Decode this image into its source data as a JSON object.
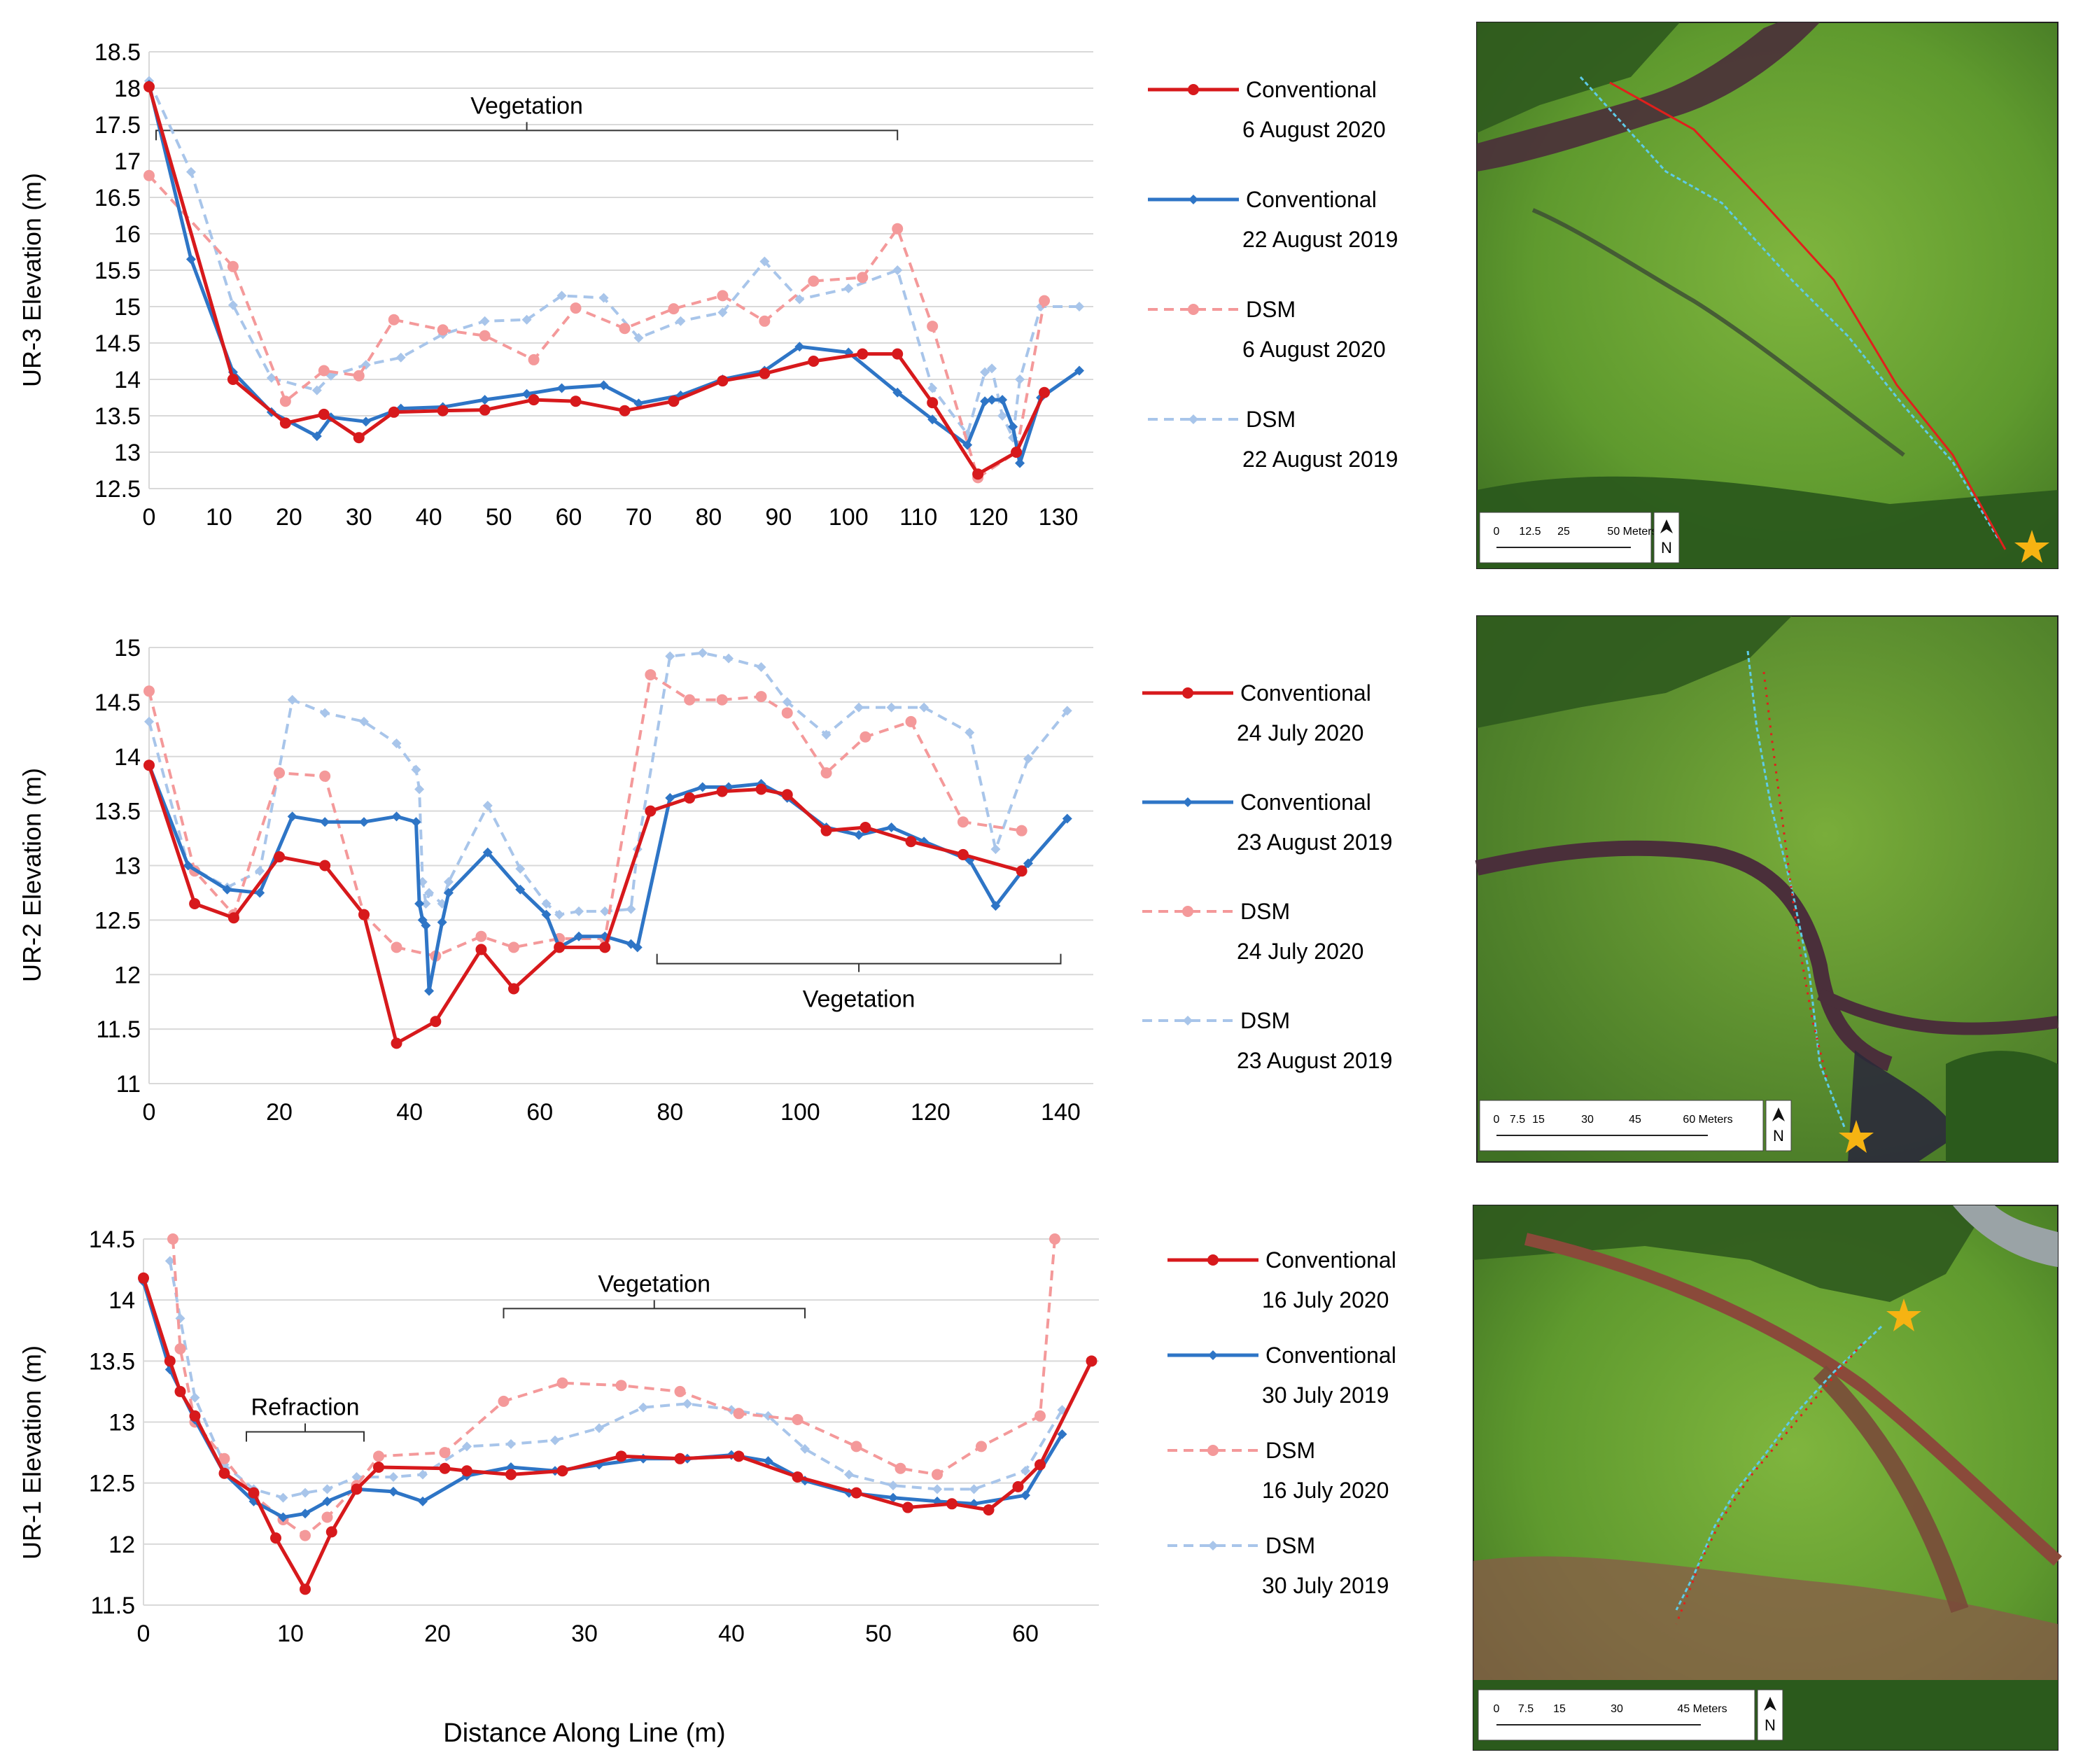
{
  "figure": {
    "xlabel": "Distance Along Line (m)"
  },
  "chart_data": [
    {
      "type": "line",
      "id": "ur3",
      "ylabel": "UR-3 Elevation (m)",
      "xlim": [
        0,
        135
      ],
      "ylim": [
        12.5,
        18.5
      ],
      "xticks": [
        0,
        10,
        20,
        30,
        40,
        50,
        60,
        70,
        80,
        90,
        100,
        110,
        120,
        130
      ],
      "yticks": [
        12.5,
        13,
        13.5,
        14,
        14.5,
        15,
        15.5,
        16,
        16.5,
        17,
        17.5,
        18,
        18.5
      ],
      "grid": "horizontal",
      "annotations": [
        {
          "label": "Vegetation",
          "x1": 1,
          "x2": 107,
          "y": 17.42,
          "tick": "down",
          "text_pos": "above"
        }
      ],
      "legend": [
        {
          "series": 0,
          "line1": "Conventional",
          "line2": "6 August 2020"
        },
        {
          "series": 1,
          "line1": "Conventional",
          "line2": "22 August 2019"
        },
        {
          "series": 2,
          "line1": "DSM",
          "line2": "6 August 2020"
        },
        {
          "series": 3,
          "line1": "DSM",
          "line2": "22 August 2019"
        }
      ],
      "series": [
        {
          "name": "Conventional 6 August 2020",
          "color": "#d7191c",
          "dash": false,
          "marker": "circle",
          "x": [
            0,
            12,
            19.5,
            25,
            30,
            35,
            42,
            48,
            55,
            61,
            68,
            75,
            82,
            88,
            95,
            102,
            107,
            112,
            118.5,
            124,
            128
          ],
          "y": [
            18.02,
            14.0,
            13.4,
            13.52,
            13.2,
            13.55,
            13.57,
            13.58,
            13.72,
            13.7,
            13.57,
            13.7,
            13.98,
            14.08,
            14.25,
            14.35,
            14.35,
            13.68,
            12.7,
            13.0,
            13.82
          ]
        },
        {
          "name": "Conventional 22 August 2019",
          "color": "#2e75c6",
          "dash": false,
          "marker": "diamond",
          "x": [
            0,
            6,
            12,
            17.5,
            24,
            26,
            31,
            36,
            42,
            48,
            54,
            59,
            65,
            70,
            76,
            82,
            88,
            93,
            100,
            107,
            112,
            117,
            119.5,
            120.5,
            122,
            123.5,
            124.5,
            127.5,
            133
          ],
          "y": [
            18.05,
            15.65,
            14.1,
            13.55,
            13.22,
            13.48,
            13.42,
            13.6,
            13.62,
            13.72,
            13.8,
            13.88,
            13.92,
            13.67,
            13.78,
            14.0,
            14.12,
            14.45,
            14.37,
            13.82,
            13.45,
            13.1,
            13.7,
            13.72,
            13.72,
            13.35,
            12.85,
            13.75,
            14.12
          ]
        },
        {
          "name": "DSM 6 August 2020",
          "color": "#f4999a",
          "dash": true,
          "marker": "circle",
          "x": [
            0,
            12,
            19.5,
            25,
            30,
            35,
            42,
            48,
            55,
            61,
            68,
            75,
            82,
            88,
            95,
            102,
            107,
            112,
            118.5,
            124,
            128
          ],
          "y": [
            16.8,
            15.55,
            13.7,
            14.12,
            14.05,
            14.82,
            14.68,
            14.6,
            14.27,
            14.98,
            14.7,
            14.97,
            15.15,
            14.8,
            15.35,
            15.4,
            16.07,
            14.73,
            12.65,
            13.0,
            15.08
          ]
        },
        {
          "name": "DSM 22 August 2019",
          "color": "#a8c5ea",
          "dash": true,
          "marker": "diamond",
          "x": [
            0,
            6,
            12,
            17.5,
            24,
            26,
            31,
            36,
            42,
            48,
            54,
            59,
            65,
            70,
            76,
            82,
            88,
            93,
            100,
            107,
            112,
            117,
            119.5,
            120.5,
            122,
            123.5,
            124.5,
            127.5,
            133
          ],
          "y": [
            18.1,
            16.85,
            15.02,
            14.02,
            13.85,
            14.05,
            14.2,
            14.3,
            14.62,
            14.8,
            14.82,
            15.15,
            15.12,
            14.57,
            14.8,
            14.92,
            15.62,
            15.1,
            15.25,
            15.5,
            13.88,
            13.25,
            14.1,
            14.15,
            13.5,
            13.2,
            14.0,
            15.0,
            15.0
          ]
        }
      ]
    },
    {
      "type": "line",
      "id": "ur2",
      "ylabel": "UR-2 Elevation (m)",
      "xlim": [
        0,
        145
      ],
      "ylim": [
        11,
        15
      ],
      "xticks": [
        0,
        20,
        40,
        60,
        80,
        100,
        120,
        140
      ],
      "yticks": [
        11,
        11.5,
        12,
        12.5,
        13,
        13.5,
        14,
        14.5,
        15
      ],
      "grid": "horizontal",
      "annotations": [
        {
          "label": "Vegetation",
          "x1": 78,
          "x2": 140,
          "y": 12.1,
          "tick": "up",
          "text_pos": "below"
        }
      ],
      "legend": [
        {
          "series": 0,
          "line1": "Conventional",
          "line2": "24 July 2020"
        },
        {
          "series": 1,
          "line1": "Conventional",
          "line2": "23 August 2019"
        },
        {
          "series": 2,
          "line1": "DSM",
          "line2": "24 July 2020"
        },
        {
          "series": 3,
          "line1": "DSM",
          "line2": "23 August 2019"
        }
      ],
      "series": [
        {
          "name": "Conventional 24 July 2020",
          "color": "#d7191c",
          "dash": false,
          "marker": "circle",
          "x": [
            0,
            7,
            13,
            20,
            27,
            33,
            38,
            44,
            51,
            56,
            63,
            70,
            77,
            83,
            88,
            94,
            98,
            104,
            110,
            117,
            125,
            134
          ],
          "y": [
            13.92,
            12.65,
            12.52,
            13.08,
            13.0,
            12.55,
            11.37,
            11.57,
            12.23,
            11.87,
            12.25,
            12.25,
            13.5,
            13.62,
            13.68,
            13.7,
            13.65,
            13.32,
            13.35,
            13.22,
            13.1,
            12.95
          ]
        },
        {
          "name": "Conventional 23 August 2019",
          "color": "#2e75c6",
          "dash": false,
          "marker": "diamond",
          "x": [
            0,
            6,
            12,
            17,
            22,
            27,
            33,
            38,
            41,
            41.5,
            42,
            42.5,
            43,
            45,
            46,
            52,
            57,
            61,
            63,
            66,
            70,
            74,
            75,
            80,
            85,
            89,
            94,
            98,
            104,
            109,
            114,
            119,
            126,
            130,
            135,
            141
          ],
          "y": [
            13.92,
            13.0,
            12.78,
            12.75,
            13.45,
            13.4,
            13.4,
            13.45,
            13.4,
            12.65,
            12.5,
            12.45,
            11.85,
            12.48,
            12.75,
            13.12,
            12.78,
            12.55,
            12.25,
            12.35,
            12.35,
            12.28,
            12.25,
            13.62,
            13.72,
            13.72,
            13.75,
            13.62,
            13.35,
            13.28,
            13.35,
            13.22,
            13.05,
            12.63,
            13.02,
            13.43
          ]
        },
        {
          "name": "DSM 24 July 2020",
          "color": "#f4999a",
          "dash": true,
          "marker": "circle",
          "x": [
            0,
            7,
            13,
            20,
            27,
            33,
            38,
            44,
            51,
            56,
            63,
            70,
            77,
            83,
            88,
            94,
            98,
            104,
            110,
            117,
            125,
            134
          ],
          "y": [
            14.6,
            12.95,
            12.55,
            13.85,
            13.82,
            12.55,
            12.25,
            12.17,
            12.35,
            12.25,
            12.33,
            12.33,
            14.75,
            14.52,
            14.52,
            14.55,
            14.4,
            13.85,
            14.18,
            14.32,
            13.4,
            13.32
          ]
        },
        {
          "name": "DSM 23 August 2019",
          "color": "#a8c5ea",
          "dash": true,
          "marker": "diamond",
          "x": [
            0,
            6,
            12,
            17,
            22,
            27,
            33,
            38,
            41,
            41.5,
            42,
            42.5,
            43,
            45,
            46,
            52,
            57,
            61,
            63,
            66,
            70,
            74,
            75,
            80,
            85,
            89,
            94,
            98,
            104,
            109,
            114,
            119,
            126,
            130,
            135,
            141
          ],
          "y": [
            14.32,
            13.0,
            12.8,
            12.95,
            14.52,
            14.4,
            14.32,
            14.12,
            13.88,
            13.7,
            12.85,
            12.65,
            12.75,
            12.65,
            12.85,
            13.55,
            12.97,
            12.65,
            12.55,
            12.58,
            12.58,
            12.6,
            13.15,
            14.92,
            14.95,
            14.9,
            14.82,
            14.5,
            14.2,
            14.45,
            14.45,
            14.45,
            14.22,
            13.15,
            13.98,
            14.42
          ]
        }
      ]
    },
    {
      "type": "line",
      "id": "ur1",
      "ylabel": "UR-1 Elevation (m)",
      "xlim": [
        0,
        65
      ],
      "ylim": [
        11.5,
        14.5
      ],
      "xticks": [
        0,
        10,
        20,
        30,
        40,
        50,
        60
      ],
      "yticks": [
        11.5,
        12,
        12.5,
        13,
        13.5,
        14,
        14.5
      ],
      "grid": "horizontal",
      "annotations": [
        {
          "label": "Refraction",
          "x1": 7,
          "x2": 15,
          "y": 12.92,
          "tick": "down",
          "text_pos": "above"
        },
        {
          "label": "Vegetation",
          "x1": 24.5,
          "x2": 45,
          "y": 13.93,
          "tick": "down",
          "text_pos": "above"
        }
      ],
      "legend": [
        {
          "series": 0,
          "line1": "Conventional",
          "line2": "16 July 2020"
        },
        {
          "series": 1,
          "line1": "Conventional",
          "line2": "30 July 2019"
        },
        {
          "series": 2,
          "line1": "DSM",
          "line2": "16 July 2020"
        },
        {
          "series": 3,
          "line1": "DSM",
          "line2": "30 July 2019"
        }
      ],
      "series": [
        {
          "name": "Conventional 16 July 2020",
          "color": "#d7191c",
          "dash": false,
          "marker": "circle",
          "x": [
            0,
            1.8,
            2.5,
            3.5,
            5.5,
            7.5,
            9,
            11,
            12.8,
            14.5,
            16,
            20.5,
            22,
            25,
            28.5,
            32.5,
            36.5,
            40.5,
            44.5,
            48.5,
            52,
            55,
            57.5,
            59.5,
            61,
            64.5
          ],
          "y": [
            14.18,
            13.5,
            13.25,
            13.05,
            12.58,
            12.42,
            12.05,
            11.63,
            12.1,
            12.45,
            12.63,
            12.62,
            12.6,
            12.57,
            12.6,
            12.72,
            12.7,
            12.72,
            12.55,
            12.42,
            12.3,
            12.33,
            12.28,
            12.47,
            12.65,
            13.5
          ]
        },
        {
          "name": "Conventional 30 July 2019",
          "color": "#2e75c6",
          "dash": false,
          "marker": "diamond",
          "x": [
            0,
            1.8,
            3.5,
            5.5,
            7.5,
            9.5,
            11,
            12.5,
            14.5,
            17,
            19,
            22,
            25,
            28,
            31,
            34,
            37,
            40,
            42.5,
            45,
            48,
            51,
            54,
            56.5,
            60,
            62.5
          ],
          "y": [
            14.15,
            13.43,
            13.02,
            12.58,
            12.35,
            12.22,
            12.25,
            12.35,
            12.45,
            12.43,
            12.35,
            12.56,
            12.63,
            12.6,
            12.65,
            12.7,
            12.7,
            12.73,
            12.68,
            12.52,
            12.42,
            12.38,
            12.35,
            12.33,
            12.4,
            12.9
          ]
        },
        {
          "name": "DSM 16 July 2020",
          "color": "#f4999a",
          "dash": true,
          "marker": "circle",
          "x": [
            2,
            2.5,
            3.5,
            5.5,
            7.5,
            9.5,
            11,
            12.5,
            14.5,
            16,
            20.5,
            24.5,
            28.5,
            32.5,
            36.5,
            40.5,
            44.5,
            48.5,
            51.5,
            54,
            57,
            61,
            62
          ],
          "y": [
            14.5,
            13.6,
            13.0,
            12.7,
            12.4,
            12.2,
            12.07,
            12.22,
            12.48,
            12.72,
            12.75,
            13.17,
            13.32,
            13.3,
            13.25,
            13.07,
            13.02,
            12.8,
            12.62,
            12.57,
            12.8,
            13.05,
            14.5
          ]
        },
        {
          "name": "DSM 30 July 2019",
          "color": "#a8c5ea",
          "dash": true,
          "marker": "diamond",
          "x": [
            1.8,
            2.5,
            3.5,
            5.5,
            7.5,
            9.5,
            11,
            12.5,
            14.5,
            17,
            19,
            22,
            25,
            28,
            31,
            34,
            37,
            40,
            42.5,
            45,
            48,
            51,
            54,
            56.5,
            60,
            62.5
          ],
          "y": [
            14.32,
            13.85,
            13.2,
            12.65,
            12.45,
            12.38,
            12.42,
            12.45,
            12.55,
            12.55,
            12.57,
            12.8,
            12.82,
            12.85,
            12.95,
            13.12,
            13.15,
            13.1,
            13.05,
            12.78,
            12.57,
            12.48,
            12.45,
            12.45,
            12.6,
            13.1
          ]
        }
      ]
    }
  ],
  "maps": [
    {
      "id": "map-ur3",
      "scale_ticks": [
        "0",
        "12.5",
        "25",
        "50 Meters"
      ],
      "north": "N"
    },
    {
      "id": "map-ur2",
      "scale_ticks": [
        "0",
        "7.5",
        "15",
        "30",
        "45",
        "60 Meters"
      ],
      "north": "N"
    },
    {
      "id": "map-ur1",
      "scale_ticks": [
        "0",
        "7.5",
        "15",
        "30",
        "45 Meters"
      ],
      "north": "N"
    }
  ]
}
